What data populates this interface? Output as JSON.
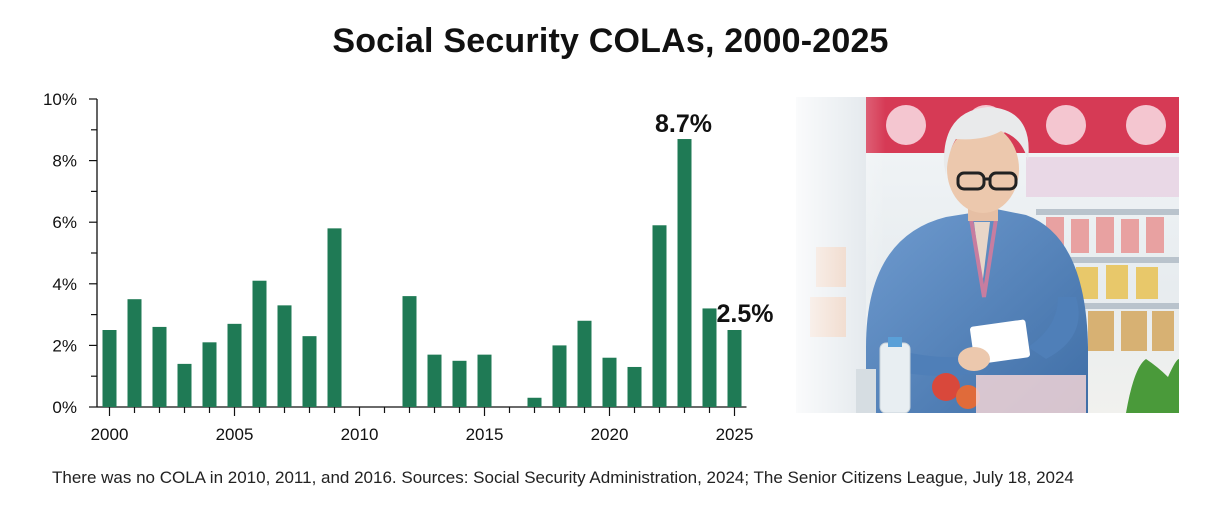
{
  "title": "Social Security COLAs, 2000-2025",
  "chart_data": {
    "type": "bar",
    "title": "Social Security COLAs, 2000-2025",
    "xlabel": "",
    "ylabel": "",
    "categories": [
      2000,
      2001,
      2002,
      2003,
      2004,
      2005,
      2006,
      2007,
      2008,
      2009,
      2010,
      2011,
      2012,
      2013,
      2014,
      2015,
      2016,
      2017,
      2018,
      2019,
      2020,
      2021,
      2022,
      2023,
      2024,
      2025
    ],
    "values": [
      2.5,
      3.5,
      2.6,
      1.4,
      2.1,
      2.7,
      4.1,
      3.3,
      2.3,
      5.8,
      0,
      0,
      3.6,
      1.7,
      1.5,
      1.7,
      0,
      0.3,
      2.0,
      2.8,
      1.6,
      1.3,
      5.9,
      8.7,
      3.2,
      2.5
    ],
    "ylim": [
      0,
      10
    ],
    "y_ticks": [
      0,
      2,
      4,
      6,
      8,
      10
    ],
    "y_tick_labels": [
      "0%",
      "2%",
      "4%",
      "6%",
      "8%",
      "10%"
    ],
    "x_tick_labels": [
      "2000",
      "2005",
      "2010",
      "2015",
      "2020",
      "2025"
    ],
    "bar_color": "#1f7a55",
    "annotations": [
      {
        "year": 2023,
        "text": "8.7%"
      },
      {
        "year": 2025,
        "text": "2.5%"
      }
    ]
  },
  "photo": {
    "description_icon": "senior-woman-grocery-shopping-photo"
  },
  "footnote": "There was no COLA in 2010, 2011, and 2016. Sources: Social Security Administration, 2024; The Senior Citizens League, July 18, 2024"
}
